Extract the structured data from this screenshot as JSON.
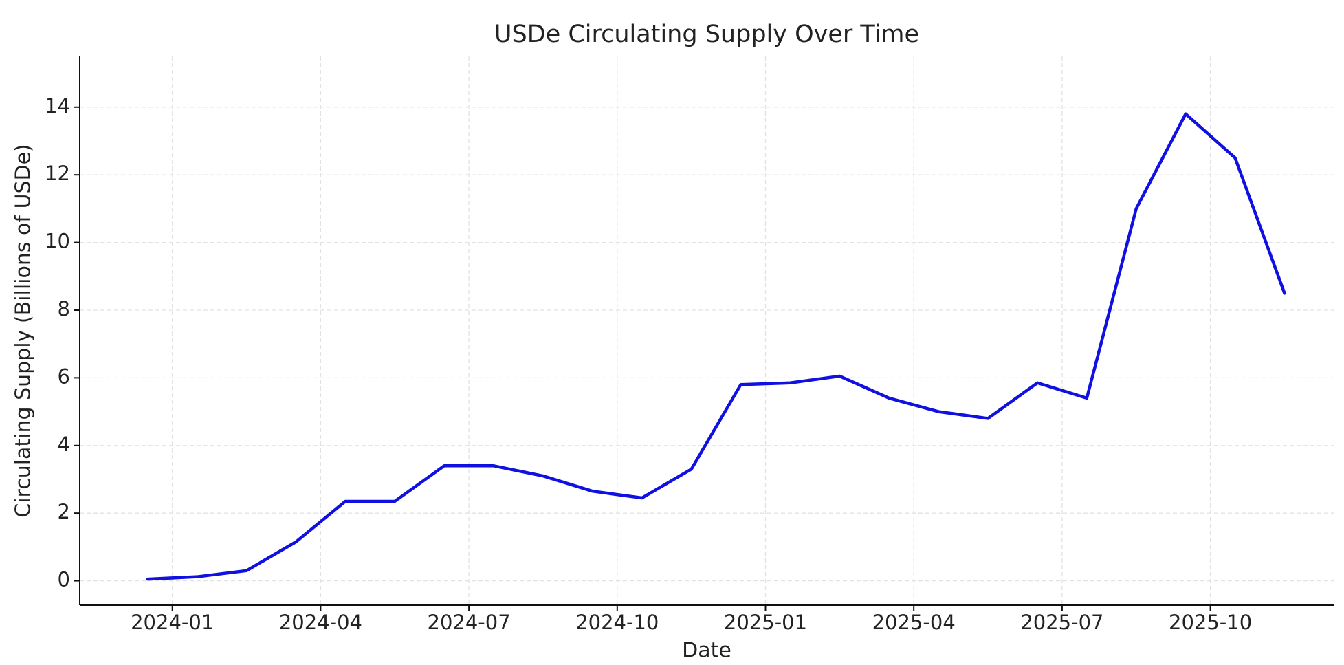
{
  "chart_data": {
    "type": "line",
    "title": "USDe Circulating Supply Over Time",
    "x_label": "Date",
    "y_label": "Circulating Supply (Billions of USDe)",
    "x": [
      "2023-12",
      "2024-01",
      "2024-02",
      "2024-03",
      "2024-04",
      "2024-05",
      "2024-06",
      "2024-07",
      "2024-08",
      "2024-09",
      "2024-10",
      "2024-11",
      "2024-12",
      "2025-01",
      "2025-02",
      "2025-03",
      "2025-04",
      "2025-05",
      "2025-06",
      "2025-07",
      "2025-08",
      "2025-09",
      "2025-10",
      "2025-11"
    ],
    "series": [
      {
        "name": "USDe",
        "color": "#1010e0",
        "values": [
          0.05,
          0.12,
          0.3,
          1.15,
          2.35,
          2.35,
          3.4,
          3.4,
          3.1,
          2.65,
          2.45,
          3.3,
          5.8,
          5.85,
          6.05,
          5.4,
          5.0,
          4.8,
          5.85,
          5.4,
          11.0,
          13.8,
          12.5,
          8.5
        ]
      }
    ],
    "xticks": [
      "2024-01",
      "2024-04",
      "2024-07",
      "2024-10",
      "2025-01",
      "2025-04",
      "2025-07",
      "2025-10"
    ],
    "ylim": [
      -0.72,
      15.5
    ],
    "yticks": [
      0,
      2,
      4,
      6,
      8,
      10,
      12,
      14
    ],
    "grid": true
  }
}
